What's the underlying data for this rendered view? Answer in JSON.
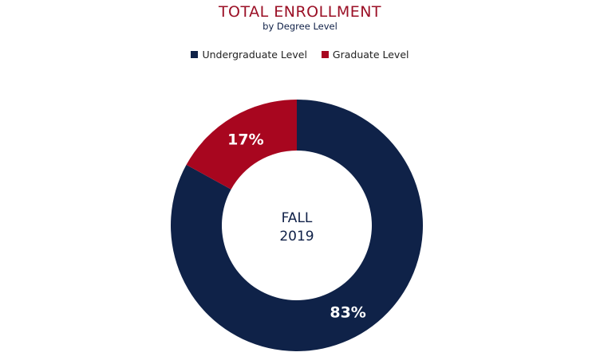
{
  "title": "TOTAL ENROLLMENT",
  "subtitle": "by Degree Level",
  "center_label": {
    "line1": "FALL",
    "line2": "2019"
  },
  "chart_data": {
    "type": "pie",
    "variant": "donut",
    "title": "TOTAL ENROLLMENT",
    "subtitle": "by Degree Level",
    "legend_position": "top",
    "slices": [
      {
        "name": "Undergraduate Level",
        "value": 83,
        "label": "83%",
        "color": "#0f2248"
      },
      {
        "name": "Graduate Level",
        "value": 17,
        "label": "17%",
        "color": "#a8061f"
      }
    ]
  }
}
